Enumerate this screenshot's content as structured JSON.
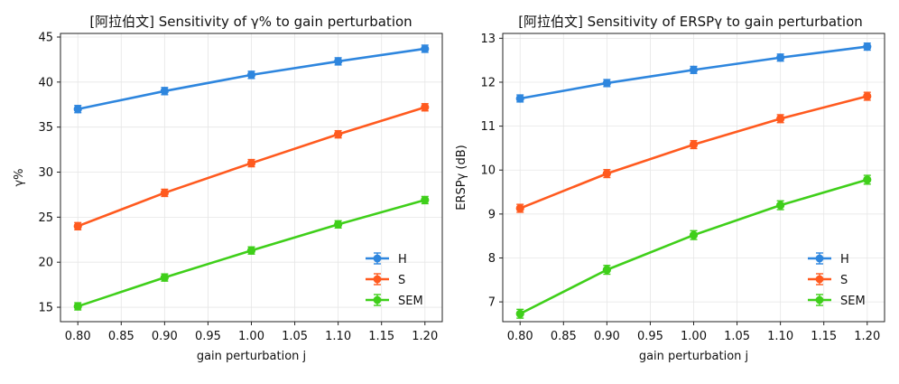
{
  "chart_data": [
    {
      "type": "line",
      "title": "[阿拉伯文] Sensitivity of γ% to gain perturbation",
      "xlabel": "gain perturbation j",
      "ylabel": "γ%",
      "x": [
        0.8,
        0.9,
        1.0,
        1.1,
        1.2
      ],
      "xlim": [
        0.78,
        1.22
      ],
      "ylim": [
        13.4,
        45.4
      ],
      "xticks": [
        0.8,
        0.85,
        0.9,
        0.95,
        1.0,
        1.05,
        1.1,
        1.15,
        1.2
      ],
      "xtick_labels": [
        "0.80",
        "0.85",
        "0.90",
        "0.95",
        "1.00",
        "1.05",
        "1.10",
        "1.15",
        "1.20"
      ],
      "yticks": [
        15,
        20,
        25,
        30,
        35,
        40,
        45
      ],
      "ytick_labels": [
        "15",
        "20",
        "25",
        "30",
        "35",
        "40",
        "45"
      ],
      "grid": true,
      "legend_position": "bottom-right",
      "series": [
        {
          "name": "H",
          "color": "#2e86de",
          "values": [
            37.0,
            39.0,
            40.8,
            42.3,
            43.7
          ],
          "errors": [
            0.4,
            0.4,
            0.4,
            0.4,
            0.4
          ]
        },
        {
          "name": "S",
          "color": "#ff5a1f",
          "values": [
            24.0,
            27.7,
            31.0,
            34.2,
            37.2
          ],
          "errors": [
            0.4,
            0.4,
            0.4,
            0.4,
            0.4
          ]
        },
        {
          "name": "SEM",
          "color": "#3fcf1a",
          "values": [
            15.1,
            18.3,
            21.3,
            24.2,
            26.9
          ],
          "errors": [
            0.4,
            0.4,
            0.4,
            0.4,
            0.4
          ]
        }
      ]
    },
    {
      "type": "line",
      "title": "[阿拉伯文] Sensitivity of ERSPγ to gain perturbation",
      "xlabel": "gain perturbation j",
      "ylabel": "ERSPγ (dB)",
      "x": [
        0.8,
        0.9,
        1.0,
        1.1,
        1.2
      ],
      "xlim": [
        0.78,
        1.22
      ],
      "ylim": [
        6.55,
        13.11
      ],
      "xticks": [
        0.8,
        0.85,
        0.9,
        0.95,
        1.0,
        1.05,
        1.1,
        1.15,
        1.2
      ],
      "xtick_labels": [
        "0.80",
        "0.85",
        "0.90",
        "0.95",
        "1.00",
        "1.05",
        "1.10",
        "1.15",
        "1.20"
      ],
      "yticks": [
        7,
        8,
        9,
        10,
        11,
        12,
        13
      ],
      "ytick_labels": [
        "7",
        "8",
        "9",
        "10",
        "11",
        "12",
        "13"
      ],
      "grid": true,
      "legend_position": "bottom-right",
      "series": [
        {
          "name": "H",
          "color": "#2e86de",
          "values": [
            11.63,
            11.98,
            12.28,
            12.56,
            12.81
          ],
          "errors": [
            0.08,
            0.08,
            0.08,
            0.08,
            0.08
          ]
        },
        {
          "name": "S",
          "color": "#ff5a1f",
          "values": [
            9.13,
            9.92,
            10.58,
            11.17,
            11.68
          ],
          "errors": [
            0.09,
            0.09,
            0.09,
            0.09,
            0.09
          ]
        },
        {
          "name": "SEM",
          "color": "#3fcf1a",
          "values": [
            6.73,
            7.73,
            8.52,
            9.2,
            9.78
          ],
          "errors": [
            0.1,
            0.1,
            0.1,
            0.1,
            0.1
          ]
        }
      ]
    }
  ]
}
